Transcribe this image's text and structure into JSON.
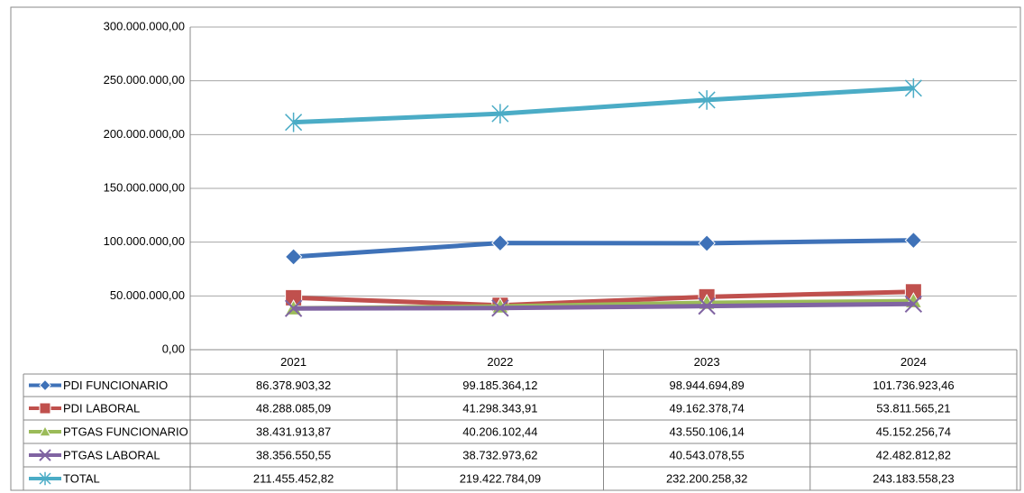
{
  "chart_data": {
    "type": "line",
    "categories": [
      "2021",
      "2022",
      "2023",
      "2024"
    ],
    "ylim": [
      0,
      300000000
    ],
    "yticks": [
      {
        "value": 0,
        "label": "0,00"
      },
      {
        "value": 50000000,
        "label": "50.000.000,00"
      },
      {
        "value": 100000000,
        "label": "100.000.000,00"
      },
      {
        "value": 150000000,
        "label": "150.000.000,00"
      },
      {
        "value": 200000000,
        "label": "200.000.000,00"
      },
      {
        "value": 250000000,
        "label": "250.000.000,00"
      },
      {
        "value": 300000000,
        "label": "300.000.000,00"
      }
    ],
    "grid": true,
    "series": [
      {
        "name": "PDI FUNCIONARIO",
        "color": "#3f72b8",
        "marker": "diamond",
        "values": [
          86378903.32,
          99185364.12,
          98944694.89,
          101736923.46
        ],
        "value_labels": [
          "86.378.903,32",
          "99.185.364,12",
          "98.944.694,89",
          "101.736.923,46"
        ]
      },
      {
        "name": "PDI LABORAL",
        "color": "#c0504d",
        "marker": "square",
        "values": [
          48288085.09,
          41298343.91,
          49162378.74,
          53811565.21
        ],
        "value_labels": [
          "48.288.085,09",
          "41.298.343,91",
          "49.162.378,74",
          "53.811.565,21"
        ]
      },
      {
        "name": "PTGAS FUNCIONARIO",
        "color": "#9bbb59",
        "marker": "triangle",
        "values": [
          38431913.87,
          40206102.44,
          43550106.14,
          45152256.74
        ],
        "value_labels": [
          "38.431.913,87",
          "40.206.102,44",
          "43.550.106,14",
          "45.152.256,74"
        ]
      },
      {
        "name": "PTGAS LABORAL",
        "color": "#8064a2",
        "marker": "x",
        "values": [
          38356550.55,
          38732973.62,
          40543078.55,
          42482812.82
        ],
        "value_labels": [
          "38.356.550,55",
          "38.732.973,62",
          "40.543.078,55",
          "42.482.812,82"
        ]
      },
      {
        "name": "TOTAL",
        "color": "#4bacc6",
        "marker": "star",
        "values": [
          211455452.82,
          219422784.09,
          232200258.32,
          243183558.23
        ],
        "value_labels": [
          "211.455.452,82",
          "219.422.784,09",
          "232.200.258,32",
          "243.183.558,23"
        ]
      }
    ]
  }
}
